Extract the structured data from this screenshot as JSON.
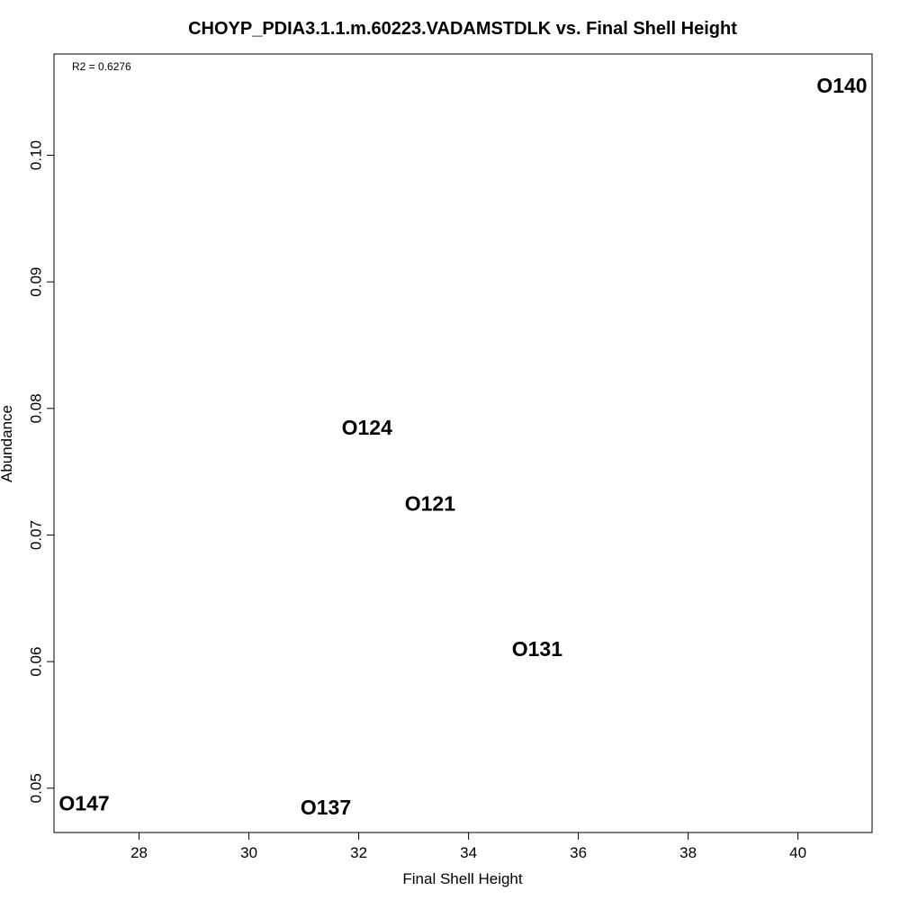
{
  "chart_data": {
    "type": "scatter",
    "title": "CHOYP_PDIA3.1.1.m.60223.VADAMSTDLK vs. Final Shell Height",
    "xlabel": "Final Shell Height",
    "ylabel": "Abundance",
    "annotation": "R2 = 0.6276",
    "xlim": [
      26.45,
      41.35
    ],
    "ylim": [
      0.0465,
      0.108
    ],
    "xticks": [
      28,
      30,
      32,
      34,
      36,
      38,
      40
    ],
    "yticks": [
      0.05,
      0.06,
      0.07,
      0.08,
      0.09,
      0.1
    ],
    "xtick_labels": [
      "28",
      "30",
      "32",
      "34",
      "36",
      "38",
      "40"
    ],
    "ytick_labels": [
      "0.05",
      "0.06",
      "0.07",
      "0.08",
      "0.09",
      "0.10"
    ],
    "grid": false,
    "points": [
      {
        "label": "O140",
        "x": 40.8,
        "y": 0.1055
      },
      {
        "label": "O124",
        "x": 32.15,
        "y": 0.0785
      },
      {
        "label": "O121",
        "x": 33.3,
        "y": 0.0725
      },
      {
        "label": "O131",
        "x": 35.25,
        "y": 0.061
      },
      {
        "label": "O147",
        "x": 27.0,
        "y": 0.0488
      },
      {
        "label": "O137",
        "x": 31.4,
        "y": 0.0485
      }
    ]
  }
}
